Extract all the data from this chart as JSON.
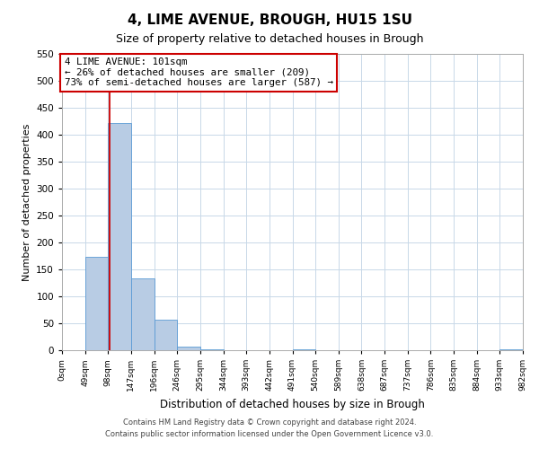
{
  "title": "4, LIME AVENUE, BROUGH, HU15 1SU",
  "subtitle": "Size of property relative to detached houses in Brough",
  "xlabel": "Distribution of detached houses by size in Brough",
  "ylabel": "Number of detached properties",
  "bin_edges": [
    0,
    49,
    98,
    147,
    196,
    245,
    294,
    343,
    392,
    441,
    490,
    539,
    588,
    637,
    686,
    735,
    784,
    833,
    882,
    931,
    980
  ],
  "bin_labels": [
    "0sqm",
    "49sqm",
    "98sqm",
    "147sqm",
    "196sqm",
    "246sqm",
    "295sqm",
    "344sqm",
    "393sqm",
    "442sqm",
    "491sqm",
    "540sqm",
    "589sqm",
    "638sqm",
    "687sqm",
    "737sqm",
    "786sqm",
    "835sqm",
    "884sqm",
    "933sqm",
    "982sqm"
  ],
  "counts": [
    0,
    173,
    421,
    133,
    57,
    7,
    1,
    0,
    0,
    0,
    1,
    0,
    0,
    0,
    0,
    0,
    0,
    0,
    0,
    2
  ],
  "bar_color": "#b8cce4",
  "bar_edge_color": "#5b9bd5",
  "property_line_x": 101,
  "property_line_color": "#cc0000",
  "annotation_line1": "4 LIME AVENUE: 101sqm",
  "annotation_line2": "← 26% of detached houses are smaller (209)",
  "annotation_line3": "73% of semi-detached houses are larger (587) →",
  "annotation_box_color": "#cc0000",
  "ylim": [
    0,
    550
  ],
  "yticks": [
    0,
    50,
    100,
    150,
    200,
    250,
    300,
    350,
    400,
    450,
    500,
    550
  ],
  "footer_line1": "Contains HM Land Registry data © Crown copyright and database right 2024.",
  "footer_line2": "Contains public sector information licensed under the Open Government Licence v3.0.",
  "bg_color": "#ffffff",
  "grid_color": "#c8d8e8"
}
